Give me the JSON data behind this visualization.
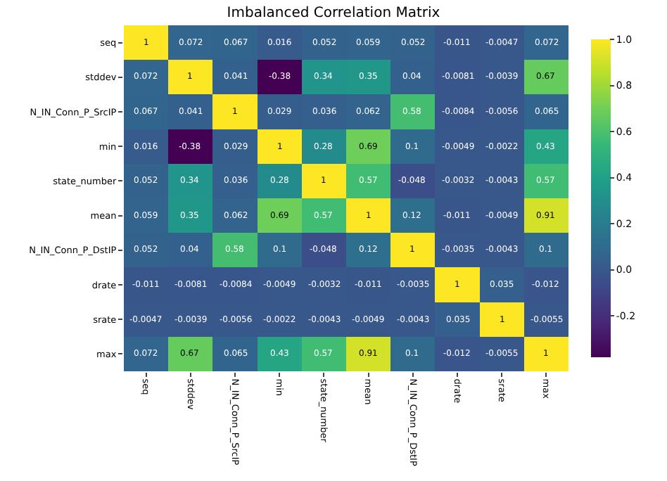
{
  "chart_data": {
    "type": "heatmap",
    "title": "Imbalanced Correlation Matrix",
    "categories": [
      "seq",
      "stddev",
      "N_IN_Conn_P_SrcIP",
      "min",
      "state_number",
      "mean",
      "N_IN_Conn_P_DstIP",
      "drate",
      "srate",
      "max"
    ],
    "y_categories": [
      "seq",
      "stddev",
      "N_IN_Conn_P_SrcIP",
      "min",
      "state_number",
      "mean",
      "N_IN_Conn_P_DstIP",
      "drate",
      "srate",
      "max"
    ],
    "cells": [
      [
        1,
        0.072,
        0.067,
        0.016,
        0.052,
        0.059,
        0.052,
        -0.011,
        -0.0047,
        0.072
      ],
      [
        0.072,
        1,
        0.041,
        -0.38,
        0.34,
        0.35,
        0.04,
        -0.0081,
        -0.0039,
        0.67
      ],
      [
        0.067,
        0.041,
        1,
        0.029,
        0.036,
        0.062,
        0.58,
        -0.0084,
        -0.0056,
        0.065
      ],
      [
        0.016,
        -0.38,
        0.029,
        1,
        0.28,
        0.69,
        0.1,
        -0.0049,
        -0.0022,
        0.43
      ],
      [
        0.052,
        0.34,
        0.036,
        0.28,
        1,
        0.57,
        -0.048,
        -0.0032,
        -0.0043,
        0.57
      ],
      [
        0.059,
        0.35,
        0.062,
        0.69,
        0.57,
        1,
        0.12,
        -0.011,
        -0.0049,
        0.91
      ],
      [
        0.052,
        0.04,
        0.58,
        0.1,
        -0.048,
        0.12,
        1,
        -0.0035,
        -0.0043,
        0.1
      ],
      [
        -0.011,
        -0.0081,
        -0.0084,
        -0.0049,
        -0.0032,
        -0.011,
        -0.0035,
        1,
        0.035,
        -0.012
      ],
      [
        -0.0047,
        -0.0039,
        -0.0056,
        -0.0022,
        -0.0043,
        -0.0049,
        -0.0043,
        0.035,
        1,
        -0.0055
      ],
      [
        0.072,
        0.67,
        0.065,
        0.43,
        0.57,
        0.91,
        0.1,
        -0.012,
        -0.0055,
        1
      ]
    ],
    "clim": [
      -0.38,
      1
    ],
    "cticks": [
      -0.2,
      {
        "value": 0,
        "label": "0.0"
      },
      0.2,
      0.4,
      0.6,
      0.8,
      {
        "value": 1,
        "label": "1.0"
      }
    ],
    "data_labels": true
  }
}
